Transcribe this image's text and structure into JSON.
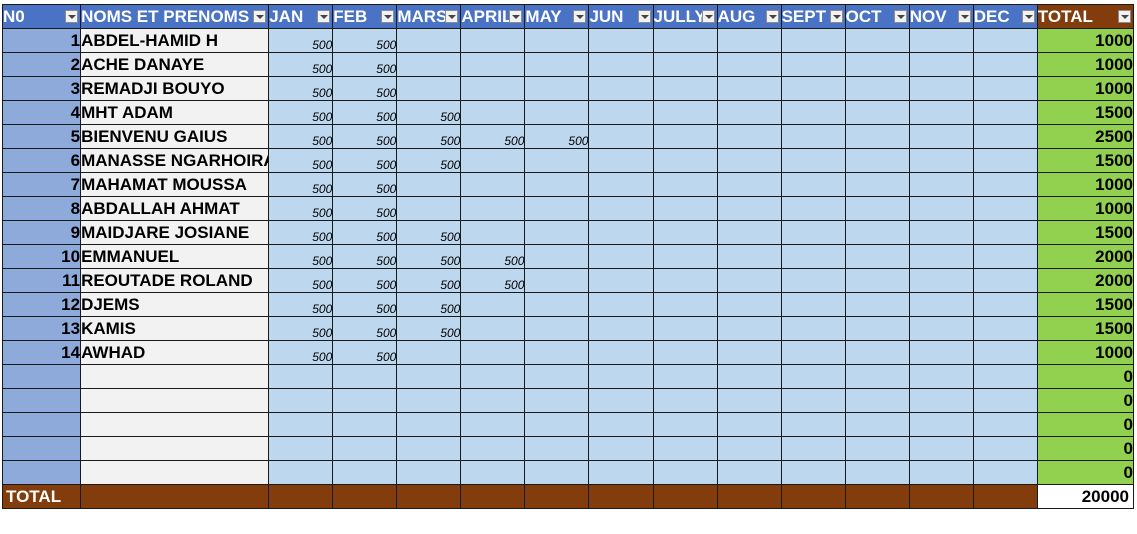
{
  "headers": {
    "no": "N0",
    "name": "NOMS ET PRENOMS",
    "months": [
      "JAN",
      "FEB",
      "MARS",
      "APRIL",
      "MAY",
      "JUN",
      "JULLY",
      "AUG",
      "SEPT",
      "OCT",
      "NOV",
      "DEC"
    ],
    "total": "TOTAL"
  },
  "rows": [
    {
      "no": "1",
      "name": "ABDEL-HAMID H",
      "months": [
        "500",
        "500",
        "",
        "",
        "",
        "",
        "",
        "",
        "",
        "",
        "",
        ""
      ],
      "total": "1000"
    },
    {
      "no": "2",
      "name": "ACHE DANAYE",
      "months": [
        "500",
        "500",
        "",
        "",
        "",
        "",
        "",
        "",
        "",
        "",
        "",
        ""
      ],
      "total": "1000"
    },
    {
      "no": "3",
      "name": "REMADJI BOUYO",
      "months": [
        "500",
        "500",
        "",
        "",
        "",
        "",
        "",
        "",
        "",
        "",
        "",
        ""
      ],
      "total": "1000"
    },
    {
      "no": "4",
      "name": "MHT ADAM",
      "months": [
        "500",
        "500",
        "500",
        "",
        "",
        "",
        "",
        "",
        "",
        "",
        "",
        ""
      ],
      "total": "1500"
    },
    {
      "no": "5",
      "name": "BIENVENU GAIUS",
      "months": [
        "500",
        "500",
        "500",
        "500",
        "500",
        "",
        "",
        "",
        "",
        "",
        "",
        ""
      ],
      "total": "2500"
    },
    {
      "no": "6",
      "name": "MANASSE NGARHOIRA",
      "months": [
        "500",
        "500",
        "500",
        "",
        "",
        "",
        "",
        "",
        "",
        "",
        "",
        ""
      ],
      "total": "1500"
    },
    {
      "no": "7",
      "name": "MAHAMAT MOUSSA",
      "months": [
        "500",
        "500",
        "",
        "",
        "",
        "",
        "",
        "",
        "",
        "",
        "",
        ""
      ],
      "total": "1000"
    },
    {
      "no": "8",
      "name": "ABDALLAH AHMAT",
      "months": [
        "500",
        "500",
        "",
        "",
        "",
        "",
        "",
        "",
        "",
        "",
        "",
        ""
      ],
      "total": "1000"
    },
    {
      "no": "9",
      "name": "MAIDJARE JOSIANE",
      "months": [
        "500",
        "500",
        "500",
        "",
        "",
        "",
        "",
        "",
        "",
        "",
        "",
        ""
      ],
      "total": "1500"
    },
    {
      "no": "10",
      "name": "EMMANUEL",
      "months": [
        "500",
        "500",
        "500",
        "500",
        "",
        "",
        "",
        "",
        "",
        "",
        "",
        ""
      ],
      "total": "2000"
    },
    {
      "no": "11",
      "name": "REOUTADE ROLAND",
      "months": [
        "500",
        "500",
        "500",
        "500",
        "",
        "",
        "",
        "",
        "",
        "",
        "",
        ""
      ],
      "total": "2000"
    },
    {
      "no": "12",
      "name": "DJEMS",
      "months": [
        "500",
        "500",
        "500",
        "",
        "",
        "",
        "",
        "",
        "",
        "",
        "",
        ""
      ],
      "total": "1500"
    },
    {
      "no": "13",
      "name": "KAMIS",
      "months": [
        "500",
        "500",
        "500",
        "",
        "",
        "",
        "",
        "",
        "",
        "",
        "",
        ""
      ],
      "total": "1500"
    },
    {
      "no": "14",
      "name": "AWHAD",
      "months": [
        "500",
        "500",
        "",
        "",
        "",
        "",
        "",
        "",
        "",
        "",
        "",
        ""
      ],
      "total": "1000"
    },
    {
      "no": "",
      "name": "",
      "months": [
        "",
        "",
        "",
        "",
        "",
        "",
        "",
        "",
        "",
        "",
        "",
        ""
      ],
      "total": "0"
    },
    {
      "no": "",
      "name": "",
      "months": [
        "",
        "",
        "",
        "",
        "",
        "",
        "",
        "",
        "",
        "",
        "",
        ""
      ],
      "total": "0"
    },
    {
      "no": "",
      "name": "",
      "months": [
        "",
        "",
        "",
        "",
        "",
        "",
        "",
        "",
        "",
        "",
        "",
        ""
      ],
      "total": "0"
    },
    {
      "no": "",
      "name": "",
      "months": [
        "",
        "",
        "",
        "",
        "",
        "",
        "",
        "",
        "",
        "",
        "",
        ""
      ],
      "total": "0"
    },
    {
      "no": "",
      "name": "",
      "months": [
        "",
        "",
        "",
        "",
        "",
        "",
        "",
        "",
        "",
        "",
        "",
        ""
      ],
      "total": "0"
    }
  ],
  "footer": {
    "label": "TOTAL",
    "grand_total": "20000"
  },
  "colors": {
    "header_bg": "#4a73c6",
    "total_header_bg": "#833c0b",
    "no_col_bg": "#8eaadb",
    "name_col_bg": "#f2f2f2",
    "month_cell_bg": "#bdd7ee",
    "total_col_bg": "#92d050",
    "footer_bg": "#833c0b"
  },
  "icons": {
    "filter": "filter-dropdown-icon"
  }
}
